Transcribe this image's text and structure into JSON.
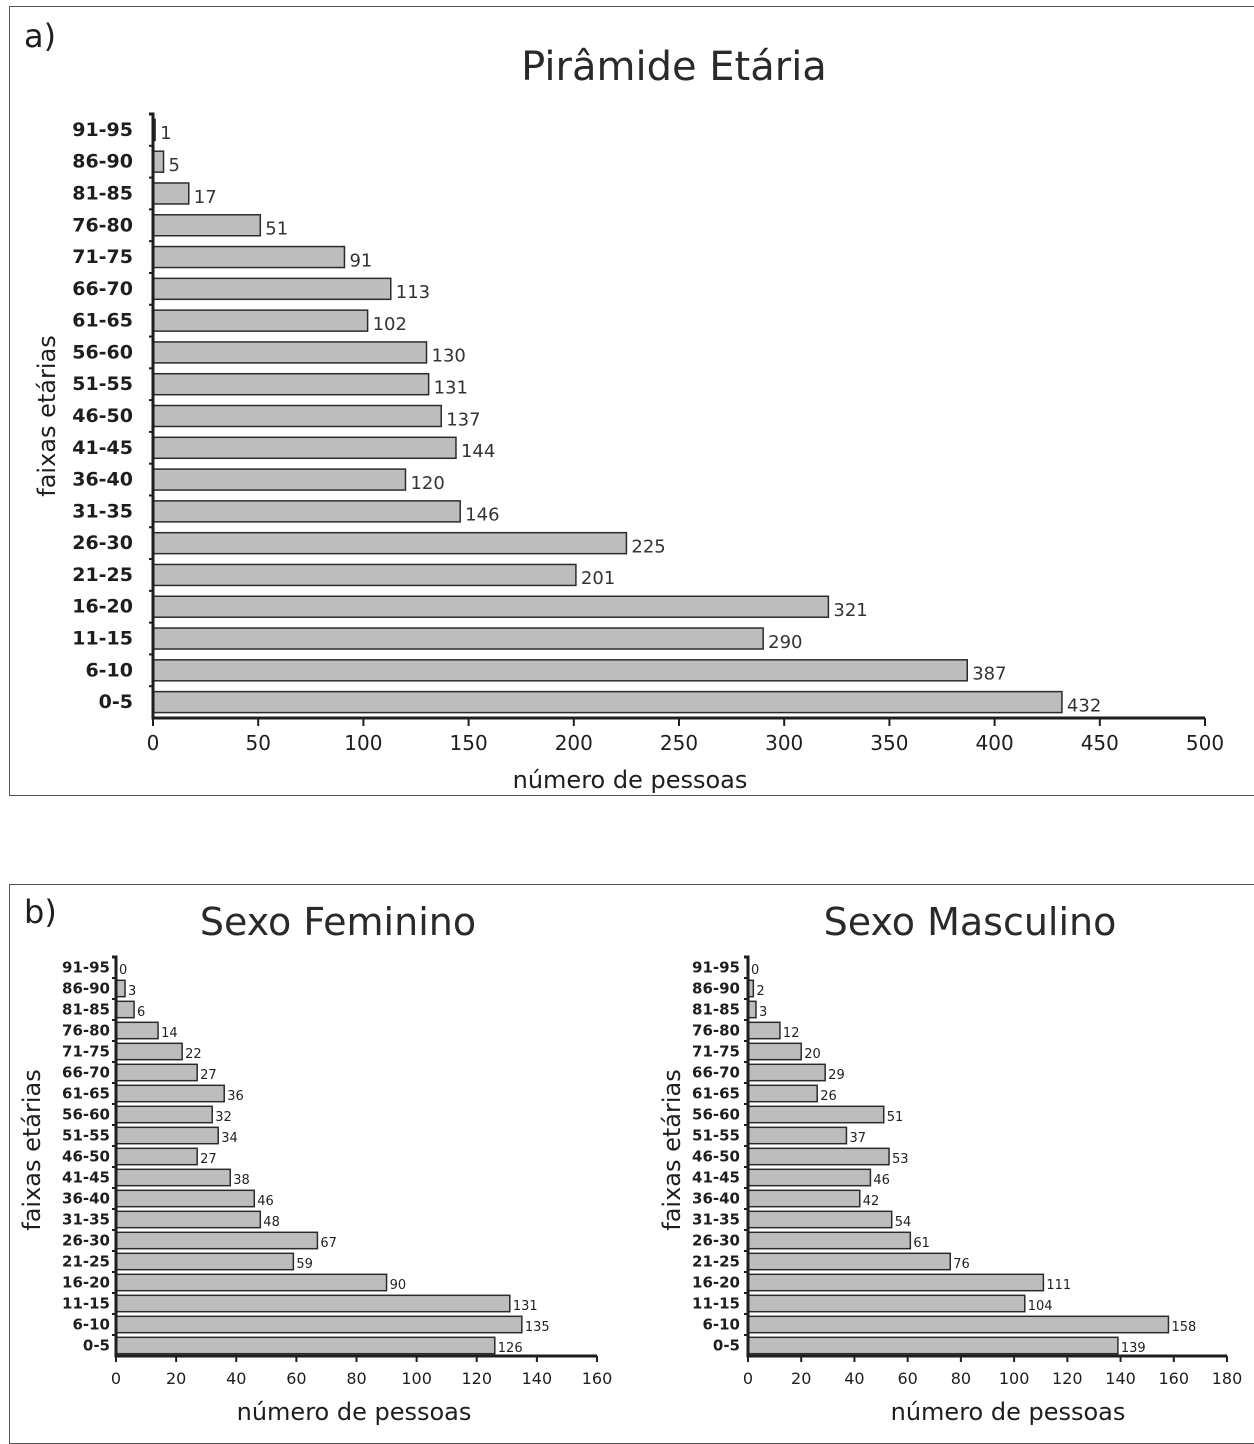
{
  "panel_a_label": "a)",
  "panel_b_label": "b)",
  "chart_data": [
    {
      "type": "bar",
      "orientation": "horizontal",
      "title": "Pirâmide Etária",
      "xlabel": "número de pessoas",
      "ylabel": "faixas etárias",
      "xlim": [
        0,
        500
      ],
      "xticks": [
        0,
        50,
        100,
        150,
        200,
        250,
        300,
        350,
        400,
        450,
        500
      ],
      "categories": [
        "0-5",
        "6-10",
        "11-15",
        "16-20",
        "21-25",
        "26-30",
        "31-35",
        "36-40",
        "41-45",
        "46-50",
        "51-55",
        "56-60",
        "61-65",
        "66-70",
        "71-75",
        "76-80",
        "81-85",
        "86-90",
        "91-95"
      ],
      "values": [
        432,
        387,
        290,
        321,
        201,
        225,
        146,
        120,
        144,
        137,
        131,
        130,
        102,
        113,
        91,
        51,
        17,
        5,
        1
      ],
      "grid": false,
      "bar_color": "#bdbdbd"
    },
    {
      "type": "bar",
      "orientation": "horizontal",
      "title": "Sexo Feminino",
      "xlabel": "número de pessoas",
      "ylabel": "faixas etárias",
      "xlim": [
        0,
        160
      ],
      "xticks": [
        0,
        20,
        40,
        60,
        80,
        100,
        120,
        140,
        160
      ],
      "categories": [
        "0-5",
        "6-10",
        "11-15",
        "16-20",
        "21-25",
        "26-30",
        "31-35",
        "36-40",
        "41-45",
        "46-50",
        "51-55",
        "56-60",
        "61-65",
        "66-70",
        "71-75",
        "76-80",
        "81-85",
        "86-90",
        "91-95"
      ],
      "values": [
        126,
        135,
        131,
        90,
        59,
        67,
        48,
        46,
        38,
        27,
        34,
        32,
        36,
        27,
        22,
        14,
        6,
        3,
        0
      ],
      "grid": false,
      "bar_color": "#bdbdbd"
    },
    {
      "type": "bar",
      "orientation": "horizontal",
      "title": "Sexo Masculino",
      "xlabel": "número de pessoas",
      "ylabel": "faixas etárias",
      "xlim": [
        0,
        180
      ],
      "xticks": [
        0,
        20,
        40,
        60,
        80,
        100,
        120,
        140,
        160,
        180
      ],
      "categories": [
        "0-5",
        "6-10",
        "11-15",
        "16-20",
        "21-25",
        "26-30",
        "31-35",
        "36-40",
        "41-45",
        "46-50",
        "51-55",
        "56-60",
        "61-65",
        "66-70",
        "71-75",
        "76-80",
        "81-85",
        "86-90",
        "91-95"
      ],
      "values": [
        139,
        158,
        104,
        111,
        76,
        61,
        54,
        42,
        46,
        53,
        37,
        51,
        26,
        29,
        20,
        12,
        3,
        2,
        0
      ],
      "grid": false,
      "bar_color": "#bdbdbd"
    }
  ]
}
